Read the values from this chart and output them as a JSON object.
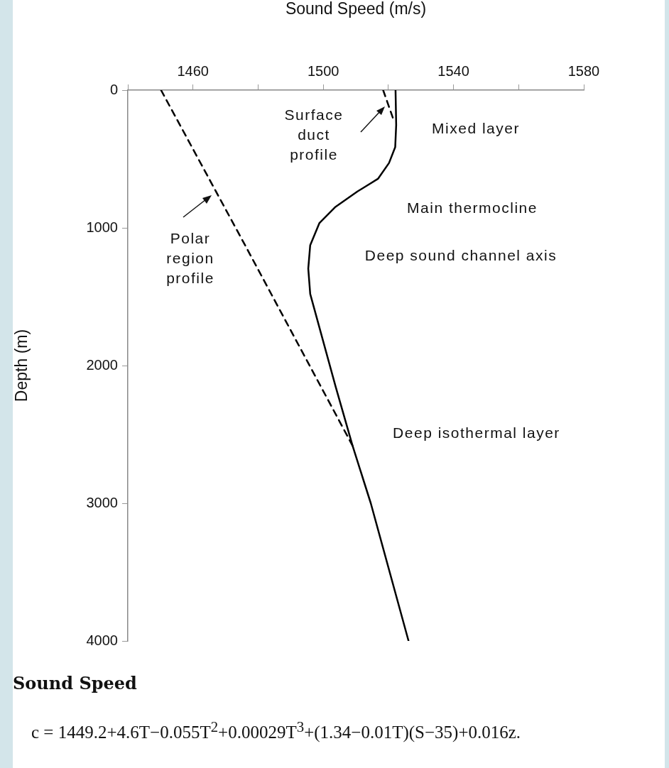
{
  "chart_data": {
    "type": "line",
    "xlabel": "Sound Speed (m/s)",
    "ylabel": "Depth (m)",
    "xlim": [
      1440,
      1580
    ],
    "xticks": [
      {
        "value": 1440,
        "label": null
      },
      1460,
      {
        "value": 1480,
        "label": null
      },
      1500,
      {
        "value": 1520,
        "label": null
      },
      1540,
      {
        "value": 1560,
        "label": null
      },
      1580
    ],
    "ylim": [
      4000,
      0
    ],
    "yticks": [
      0,
      1000,
      2000,
      3000,
      4000
    ],
    "grid": false,
    "legend": false,
    "marker": "none",
    "series": [
      {
        "color": "#000000",
        "line_style": "solid",
        "x": [
          1522.2,
          1522.4,
          1522.1,
          1520.2,
          1516.8,
          1510.5,
          1503.6,
          1498.8,
          1496.0,
          1495.4,
          1496.0,
          1498.6,
          1503.8,
          1509.0,
          1514.6,
          1526.2
        ],
        "values": [
          0,
          253,
          414,
          529,
          644,
          736,
          851,
          966,
          1126,
          1296,
          1480,
          1704,
          2153,
          2582,
          3000,
          4000
        ]
      },
      {
        "color": "#000000",
        "line_style": "dashed",
        "x": [
          1450.2,
          1476.0,
          1509.0
        ],
        "values": [
          0,
          1126,
          2582
        ]
      },
      {
        "color": "#000000",
        "line_style": "dashed",
        "x": [
          1518.4,
          1521.8
        ],
        "values": [
          0,
          230
        ]
      }
    ],
    "annotations": [
      "Surface\nduct\nprofile",
      "Mixed layer",
      "Main thermocline",
      "Polar\nregion\nprofile",
      "Deep sound channel axis",
      "Deep isothermal layer",
      "Sound Speed",
      "c = 1449.2+4.6T−0.055T$^{2}$+0.00029T$^{3}$+(1.34−0.01T)(S−35)+0.016z."
    ]
  }
}
